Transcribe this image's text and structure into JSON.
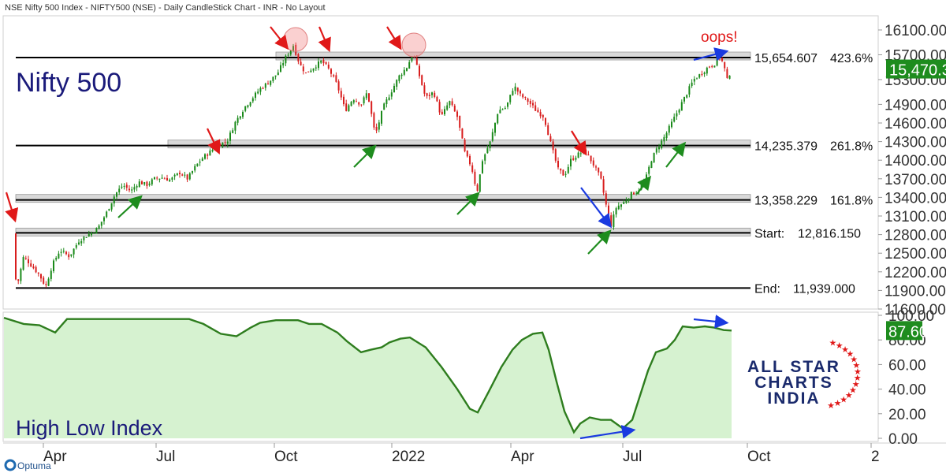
{
  "header": {
    "title": "NSE Nifty 500 Index - NIFTY500 (NSE) - Daily CandleStick Chart - INR - No Layout"
  },
  "watermark": {
    "optuma": "Optuma",
    "brand_lines": [
      "ALL STAR",
      "CHARTS",
      "INDIA"
    ]
  },
  "colors": {
    "up": "#1a8a1a",
    "down": "#d81e1e",
    "accent_green": "#1e8c1e",
    "fib_line": "#000000",
    "fib_band": "#d9d9d9",
    "title_text": "#1a1a7a",
    "area_fill": "#d6f2d0",
    "area_line": "#2e7d1e"
  },
  "chart_data": [
    {
      "type": "candlestick",
      "title": "Nifty 500",
      "ylim": [
        11600,
        16100
      ],
      "y_ticks": [
        "16100.00",
        "15700.00",
        "15300.00",
        "14900.00",
        "14600.00",
        "14300.00",
        "14000.00",
        "13700.00",
        "13400.00",
        "13100.00",
        "12800.00",
        "12500.00",
        "12200.00",
        "11900.00",
        "11600.00"
      ],
      "x_ticks": [
        "Apr",
        "Jul",
        "Oct",
        "2022",
        "Apr",
        "Jul",
        "Oct",
        "2"
      ],
      "last_price": "15,470.3",
      "levels": [
        {
          "value": 15654.607,
          "label": "15,654.607",
          "pct": "423.6%"
        },
        {
          "value": 14235.379,
          "label": "14,235.379",
          "pct": "261.8%"
        },
        {
          "value": 13358.229,
          "label": "13,358.229",
          "pct": "161.8%"
        },
        {
          "value": 12816.15,
          "label": "12,816.150",
          "prefix": "Start:"
        },
        {
          "value": 11939.0,
          "label": "11,939.000",
          "prefix": "End:"
        }
      ],
      "annotation": "oops!",
      "path": [
        [
          0,
          12816
        ],
        [
          8,
          12650
        ],
        [
          15,
          12300
        ],
        [
          22,
          11990
        ],
        [
          30,
          12450
        ],
        [
          40,
          12300
        ],
        [
          50,
          12150
        ],
        [
          58,
          11960
        ],
        [
          66,
          12300
        ],
        [
          76,
          12550
        ],
        [
          88,
          12450
        ],
        [
          100,
          12700
        ],
        [
          112,
          12800
        ],
        [
          124,
          12900
        ],
        [
          135,
          13150
        ],
        [
          146,
          13450
        ],
        [
          156,
          13600
        ],
        [
          166,
          13500
        ],
        [
          176,
          13650
        ],
        [
          186,
          13600
        ],
        [
          196,
          13700
        ],
        [
          206,
          13720
        ],
        [
          216,
          13680
        ],
        [
          228,
          13800
        ],
        [
          238,
          13700
        ],
        [
          248,
          13900
        ],
        [
          258,
          14050
        ],
        [
          268,
          14150
        ],
        [
          276,
          14250
        ],
        [
          288,
          14300
        ],
        [
          298,
          14600
        ],
        [
          310,
          14850
        ],
        [
          320,
          15000
        ],
        [
          330,
          15150
        ],
        [
          340,
          15250
        ],
        [
          352,
          15400
        ],
        [
          362,
          15650
        ],
        [
          372,
          15850
        ],
        [
          380,
          15550
        ],
        [
          388,
          15400
        ],
        [
          398,
          15500
        ],
        [
          408,
          15600
        ],
        [
          418,
          15450
        ],
        [
          428,
          15200
        ],
        [
          438,
          14800
        ],
        [
          448,
          15000
        ],
        [
          458,
          14900
        ],
        [
          466,
          15100
        ],
        [
          476,
          14400
        ],
        [
          486,
          14850
        ],
        [
          496,
          15100
        ],
        [
          506,
          15350
        ],
        [
          516,
          15500
        ],
        [
          524,
          15720
        ],
        [
          530,
          15450
        ],
        [
          540,
          15000
        ],
        [
          550,
          15100
        ],
        [
          560,
          14700
        ],
        [
          570,
          14950
        ],
        [
          580,
          14700
        ],
        [
          590,
          14100
        ],
        [
          598,
          13900
        ],
        [
          605,
          13480
        ],
        [
          612,
          14000
        ],
        [
          622,
          14300
        ],
        [
          632,
          14800
        ],
        [
          642,
          14850
        ],
        [
          652,
          15200
        ],
        [
          660,
          15050
        ],
        [
          670,
          14950
        ],
        [
          680,
          14800
        ],
        [
          690,
          14700
        ],
        [
          700,
          14200
        ],
        [
          708,
          13850
        ],
        [
          716,
          13750
        ],
        [
          724,
          14000
        ],
        [
          734,
          14100
        ],
        [
          742,
          14150
        ],
        [
          752,
          13950
        ],
        [
          762,
          13700
        ],
        [
          770,
          13200
        ],
        [
          775,
          12950
        ],
        [
          782,
          13250
        ],
        [
          790,
          13300
        ],
        [
          800,
          13450
        ],
        [
          808,
          13500
        ],
        [
          818,
          13650
        ],
        [
          826,
          14000
        ],
        [
          834,
          14200
        ],
        [
          844,
          14400
        ],
        [
          852,
          14600
        ],
        [
          862,
          14850
        ],
        [
          872,
          15100
        ],
        [
          880,
          15300
        ],
        [
          890,
          15400
        ],
        [
          898,
          15500
        ],
        [
          906,
          15550
        ],
        [
          912,
          15680
        ],
        [
          918,
          15550
        ],
        [
          922,
          15280
        ],
        [
          928,
          15470
        ]
      ]
    },
    {
      "type": "area",
      "title": "High Low Index",
      "ylim": [
        0,
        100
      ],
      "y_ticks": [
        "100.00",
        "80.00",
        "60.00",
        "40.00",
        "20.00",
        "0.00"
      ],
      "last_value": "87.60",
      "path": [
        [
          5,
          98
        ],
        [
          30,
          93
        ],
        [
          50,
          92
        ],
        [
          70,
          86
        ],
        [
          85,
          97
        ],
        [
          110,
          97
        ],
        [
          150,
          97
        ],
        [
          200,
          97
        ],
        [
          240,
          97
        ],
        [
          258,
          93
        ],
        [
          280,
          85
        ],
        [
          300,
          83
        ],
        [
          318,
          90
        ],
        [
          330,
          94
        ],
        [
          350,
          96
        ],
        [
          378,
          96
        ],
        [
          392,
          93
        ],
        [
          408,
          93
        ],
        [
          428,
          86
        ],
        [
          440,
          79
        ],
        [
          458,
          70
        ],
        [
          470,
          72
        ],
        [
          484,
          74
        ],
        [
          494,
          78
        ],
        [
          508,
          81
        ],
        [
          520,
          82
        ],
        [
          540,
          74
        ],
        [
          560,
          58
        ],
        [
          580,
          40
        ],
        [
          596,
          24
        ],
        [
          606,
          21
        ],
        [
          620,
          38
        ],
        [
          636,
          58
        ],
        [
          650,
          72
        ],
        [
          662,
          80
        ],
        [
          676,
          85
        ],
        [
          688,
          86
        ],
        [
          696,
          72
        ],
        [
          706,
          46
        ],
        [
          716,
          22
        ],
        [
          728,
          5
        ],
        [
          736,
          12
        ],
        [
          748,
          17
        ],
        [
          762,
          15
        ],
        [
          775,
          15
        ],
        [
          790,
          8
        ],
        [
          802,
          15
        ],
        [
          812,
          35
        ],
        [
          822,
          55
        ],
        [
          832,
          70
        ],
        [
          846,
          73
        ],
        [
          856,
          80
        ],
        [
          866,
          91
        ],
        [
          880,
          90
        ],
        [
          894,
          91
        ],
        [
          906,
          90
        ],
        [
          918,
          88
        ],
        [
          928,
          87.6
        ]
      ]
    }
  ]
}
